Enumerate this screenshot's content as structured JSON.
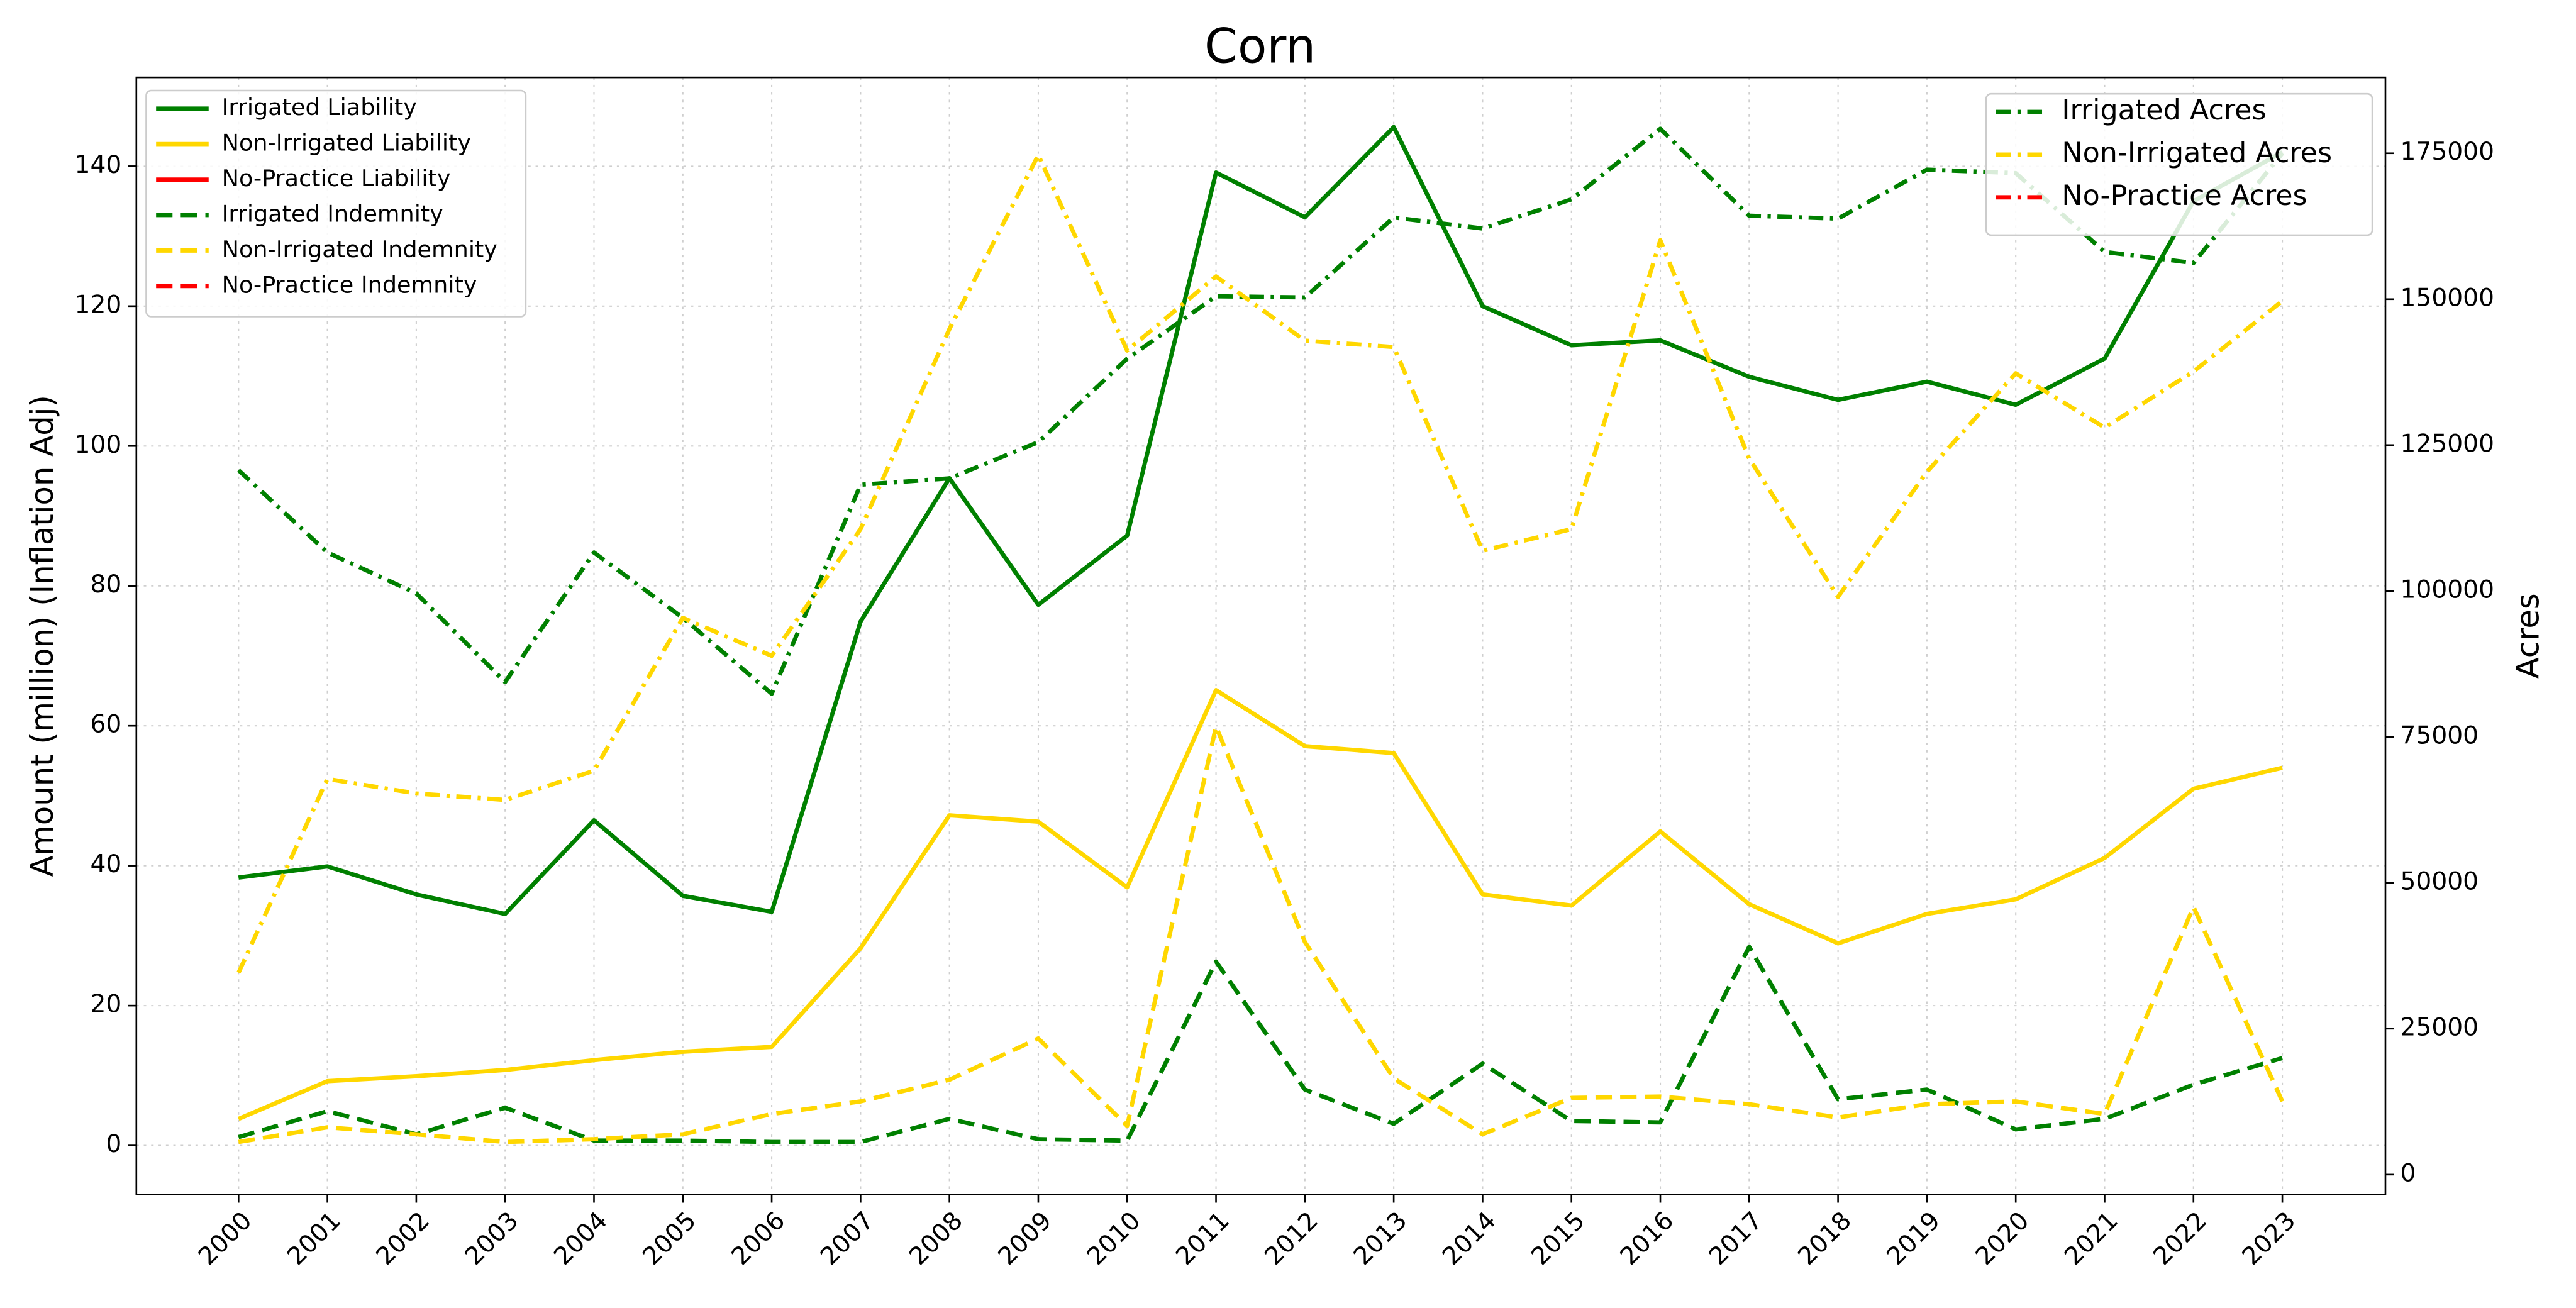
{
  "chart_data": {
    "type": "line",
    "title": "Corn",
    "y_label": "Amount (million) (Inflation Adj)",
    "y2_label": "Acres",
    "x": [
      2000,
      2001,
      2002,
      2003,
      2004,
      2005,
      2006,
      2007,
      2008,
      2009,
      2010,
      2011,
      2012,
      2013,
      2014,
      2015,
      2016,
      2017,
      2018,
      2019,
      2020,
      2021,
      2022,
      2023
    ],
    "xlim": [
      1998.85,
      2024.16
    ],
    "xticks": [
      2000,
      2001,
      2002,
      2003,
      2004,
      2005,
      2006,
      2007,
      2008,
      2009,
      2010,
      2011,
      2012,
      2013,
      2014,
      2015,
      2016,
      2017,
      2018,
      2019,
      2020,
      2021,
      2022,
      2023
    ],
    "ylim": [
      -7,
      152.7
    ],
    "yticks": [
      0,
      20,
      40,
      60,
      80,
      100,
      120,
      140
    ],
    "y2lim": [
      -3400,
      188000
    ],
    "y2ticks": [
      0,
      25000,
      50000,
      75000,
      100000,
      125000,
      150000,
      175000
    ],
    "grid": true,
    "legend": "upper left",
    "legend2": "upper right",
    "series": [
      {
        "name": "Irrigated Liability",
        "color": "#008000",
        "dash": "solid",
        "values": [
          38.3,
          39.9,
          35.9,
          33.1,
          46.5,
          35.7,
          33.4,
          74.9,
          95.4,
          77.3,
          87.2,
          139.1,
          132.7,
          145.6,
          120.0,
          114.4,
          115.1,
          109.9,
          106.6,
          109.2,
          105.9,
          112.5,
          135,
          142
        ]
      },
      {
        "name": "Non-Irrigated Liability",
        "color": "#ffd700",
        "dash": "solid",
        "values": [
          3.8,
          9.2,
          9.9,
          10.8,
          12.2,
          13.4,
          14.1,
          28.2,
          47.2,
          46.3,
          36.9,
          65.1,
          57.1,
          56.1,
          35.9,
          34.3,
          44.9,
          34.5,
          28.9,
          33.1,
          35.2,
          41.1,
          51.0,
          54.0
        ]
      },
      {
        "name": "No-Practice Liability",
        "color": "#ff0000",
        "dash": "solid",
        "values": [
          null,
          null,
          null,
          null,
          null,
          null,
          null,
          null,
          null,
          null,
          null,
          null,
          null,
          null,
          null,
          null,
          null,
          null,
          null,
          null,
          null,
          null,
          null,
          null
        ]
      },
      {
        "name": "Irrigated Indemnity",
        "color": "#008000",
        "dash": "dashed",
        "values": [
          1.2,
          4.9,
          1.6,
          5.4,
          0.7,
          0.7,
          0.5,
          0.5,
          3.8,
          0.9,
          0.7,
          26.3,
          8.0,
          3.1,
          11.7,
          3.5,
          3.3,
          28.4,
          6.6,
          8.0,
          2.3,
          3.8,
          8.7,
          12.5
        ]
      },
      {
        "name": "Non-Irrigated Indemnity",
        "color": "#ffd700",
        "dash": "dashed",
        "values": [
          0.5,
          2.6,
          1.6,
          0.5,
          0.9,
          1.6,
          4.5,
          6.3,
          9.4,
          15.3,
          2.8,
          59.9,
          29.1,
          9.6,
          1.6,
          6.8,
          7.0,
          5.9,
          4.0,
          5.9,
          6.3,
          4.5,
          34.1,
          6.3
        ]
      },
      {
        "name": "No-Practice Indemnity",
        "color": "#ff0000",
        "dash": "dashed",
        "values": [
          null,
          null,
          null,
          null,
          null,
          null,
          null,
          null,
          null,
          null,
          null,
          null,
          null,
          null,
          null,
          null,
          null,
          null,
          null,
          null,
          null,
          null,
          null,
          null
        ]
      },
      {
        "name": "Irrigated Acres",
        "color": "#008000",
        "dash": "dashdot",
        "axis": "y2",
        "values": [
          120700,
          106600,
          99600,
          84400,
          106600,
          95400,
          82400,
          118200,
          119300,
          125500,
          139800,
          150500,
          150300,
          164000,
          162100,
          167100,
          179200,
          164300,
          163800,
          172200,
          171600,
          158100,
          156200,
          175000
        ]
      },
      {
        "name": "Non-Irrigated Acres",
        "color": "#ffd700",
        "dash": "dashdot",
        "axis": "y2",
        "values": [
          34600,
          67800,
          65300,
          64200,
          69200,
          95400,
          88900,
          110600,
          144900,
          174700,
          141200,
          153900,
          142900,
          141800,
          106900,
          110600,
          160100,
          122700,
          99000,
          120400,
          137300,
          128000,
          137600,
          149700
        ]
      },
      {
        "name": "No-Practice Acres",
        "color": "#ff0000",
        "dash": "dashdot",
        "axis": "y2",
        "values": [
          null,
          null,
          null,
          null,
          null,
          null,
          null,
          null,
          null,
          null,
          null,
          null,
          null,
          null,
          null,
          null,
          null,
          null,
          null,
          null,
          null,
          null,
          null,
          null
        ]
      }
    ]
  }
}
